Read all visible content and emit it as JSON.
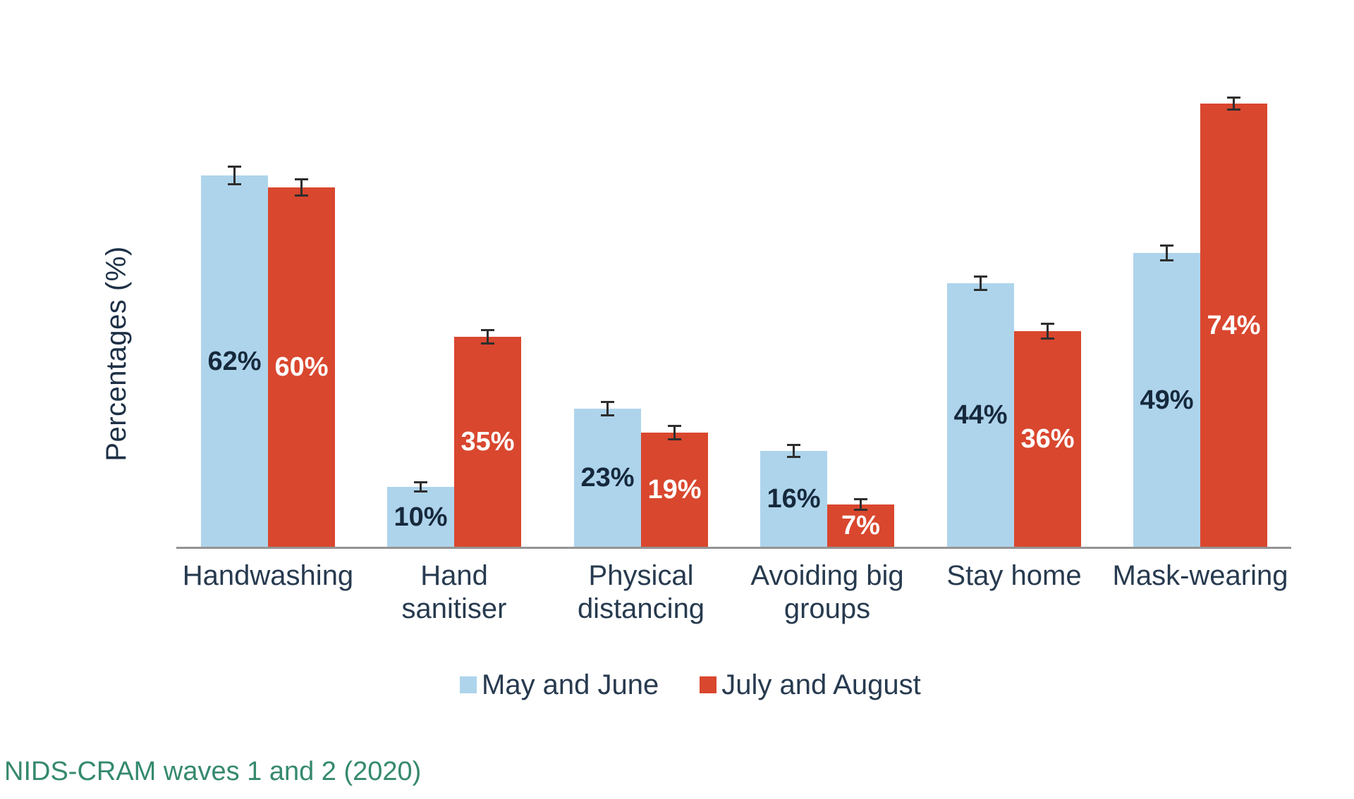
{
  "chart_data": {
    "type": "bar",
    "title": "",
    "categories": [
      "Handwashing",
      "Hand\nsanitiser",
      "Physical\ndistancing",
      "Avoiding big\ngroups",
      "Stay home",
      "Mask-wearing"
    ],
    "series": [
      {
        "name": "May and June",
        "color": "#aed4ec",
        "values": [
          62,
          10,
          23,
          16,
          44,
          49
        ],
        "labels": [
          "62%",
          "10%",
          "23%",
          "16%",
          "44%",
          "49%"
        ],
        "label_color": "#16293c",
        "errors": [
          1.5,
          0.8,
          1.2,
          1.1,
          1.2,
          1.3
        ]
      },
      {
        "name": "July and August",
        "color": "#d9472e",
        "values": [
          60,
          35,
          19,
          7,
          36,
          74
        ],
        "labels": [
          "60%",
          "35%",
          "19%",
          "7%",
          "36%",
          "74%"
        ],
        "label_color": "#ffffff",
        "errors": [
          1.4,
          1.2,
          1.2,
          0.9,
          1.3,
          1.0
        ]
      }
    ],
    "xlabel": "",
    "ylabel": "Percentages (%)",
    "ylim": [
      0,
      80
    ],
    "grid": false,
    "legend_position": "bottom",
    "error_bars": true
  },
  "source_note": "NIDS-CRAM waves 1 and 2 (2020)",
  "colors": {
    "background": "#ffffff",
    "axis_line": "#949494",
    "category_text": "#273a4f",
    "y_axis_text": "#1d3046",
    "error_bar": "#2e2e2e",
    "source_text": "#35896f"
  }
}
